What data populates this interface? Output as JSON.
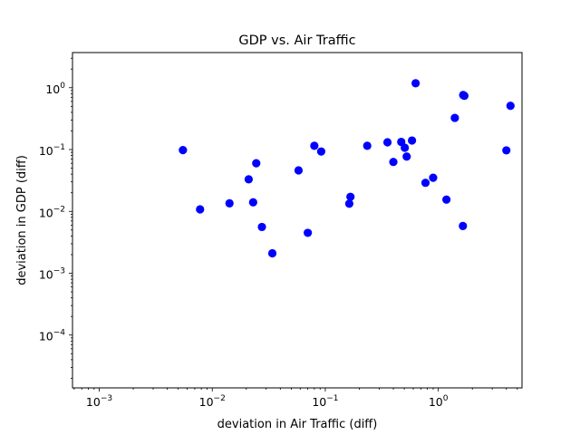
{
  "chart_data": {
    "type": "scatter",
    "title": "GDP vs. Air Traffic",
    "xlabel": "deviation in Air Traffic (diff)",
    "ylabel": "deviation in GDP (diff)",
    "xscale": "log",
    "yscale": "log",
    "xlim": [
      0.00058,
      5.5
    ],
    "ylim": [
      1.4e-05,
      3.7
    ],
    "xticks": [
      {
        "value": 0.001,
        "base": "10",
        "exp": "−3"
      },
      {
        "value": 0.01,
        "base": "10",
        "exp": "−2"
      },
      {
        "value": 0.1,
        "base": "10",
        "exp": "−1"
      },
      {
        "value": 1,
        "base": "10",
        "exp": "0"
      }
    ],
    "yticks": [
      {
        "value": 0.0001,
        "base": "10",
        "exp": "−4"
      },
      {
        "value": 0.001,
        "base": "10",
        "exp": "−3"
      },
      {
        "value": 0.01,
        "base": "10",
        "exp": "−2"
      },
      {
        "value": 0.1,
        "base": "10",
        "exp": "−1"
      },
      {
        "value": 1,
        "base": "10",
        "exp": "0"
      }
    ],
    "grid": false,
    "marker_color": "#0000ff",
    "points": [
      {
        "x": 0.0055,
        "y": 0.098
      },
      {
        "x": 0.0078,
        "y": 0.0108
      },
      {
        "x": 0.0142,
        "y": 0.0135
      },
      {
        "x": 0.021,
        "y": 0.033
      },
      {
        "x": 0.023,
        "y": 0.014
      },
      {
        "x": 0.0245,
        "y": 0.06
      },
      {
        "x": 0.0275,
        "y": 0.0056
      },
      {
        "x": 0.034,
        "y": 0.0021
      },
      {
        "x": 0.058,
        "y": 0.046
      },
      {
        "x": 0.07,
        "y": 0.0045
      },
      {
        "x": 0.08,
        "y": 0.115
      },
      {
        "x": 0.092,
        "y": 0.093
      },
      {
        "x": 0.163,
        "y": 0.0133
      },
      {
        "x": 0.167,
        "y": 0.0172
      },
      {
        "x": 0.235,
        "y": 0.115
      },
      {
        "x": 0.355,
        "y": 0.131
      },
      {
        "x": 0.4,
        "y": 0.063
      },
      {
        "x": 0.47,
        "y": 0.133
      },
      {
        "x": 0.505,
        "y": 0.107
      },
      {
        "x": 0.525,
        "y": 0.077
      },
      {
        "x": 0.585,
        "y": 0.14
      },
      {
        "x": 0.63,
        "y": 1.18
      },
      {
        "x": 0.77,
        "y": 0.029
      },
      {
        "x": 0.9,
        "y": 0.035
      },
      {
        "x": 1.18,
        "y": 0.0155
      },
      {
        "x": 1.4,
        "y": 0.325
      },
      {
        "x": 1.65,
        "y": 0.0058
      },
      {
        "x": 1.66,
        "y": 0.76
      },
      {
        "x": 1.7,
        "y": 0.74
      },
      {
        "x": 4.0,
        "y": 0.097
      },
      {
        "x": 4.35,
        "y": 0.51
      }
    ]
  }
}
